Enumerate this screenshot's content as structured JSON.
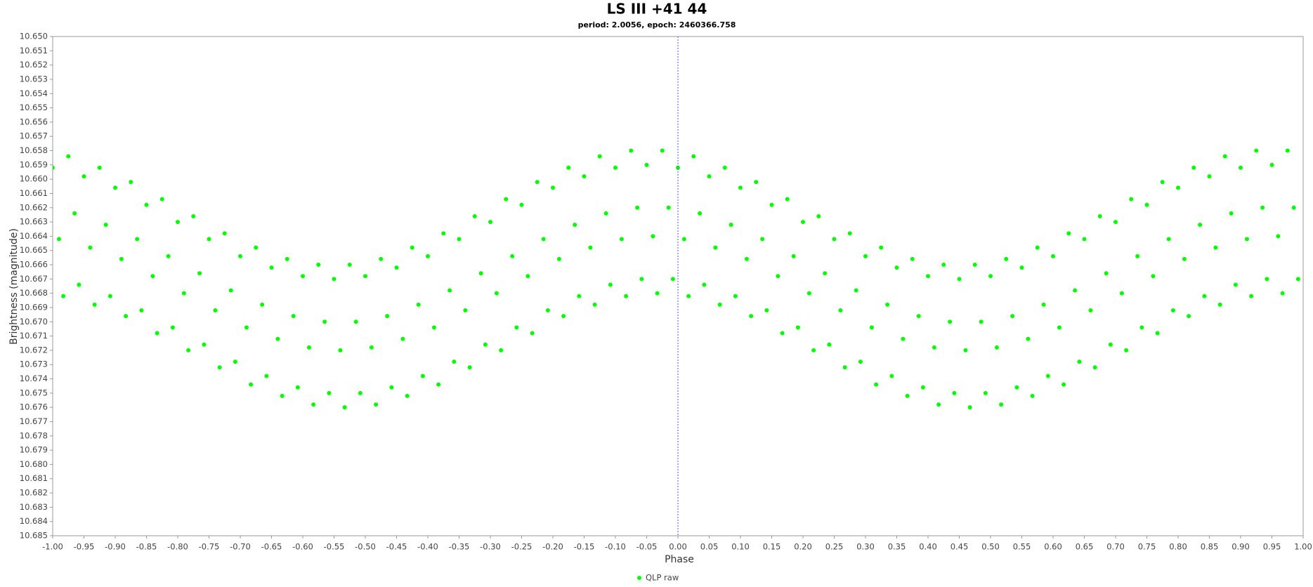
{
  "chart_data": {
    "type": "scatter",
    "title": "LS III +41 44",
    "subtitle": "period: 2.0056, epoch: 2460366.758",
    "x_label": "Phase",
    "y_label": "Brightness (magnitude)",
    "xlim": [
      -1,
      1
    ],
    "ylim": [
      10.65,
      10.685
    ],
    "y_inverted": true,
    "reference_x": 0,
    "legend": "bottom",
    "xticks": [
      {
        "value": -1,
        "label": "-1.00"
      },
      {
        "value": -0.95,
        "label": "-0.95"
      },
      {
        "value": -0.9,
        "label": "-0.90"
      },
      {
        "value": -0.85,
        "label": "-0.85"
      },
      {
        "value": -0.8,
        "label": "-0.80"
      },
      {
        "value": -0.75,
        "label": "-0.75"
      },
      {
        "value": -0.7,
        "label": "-0.70"
      },
      {
        "value": -0.65,
        "label": "-0.65"
      },
      {
        "value": -0.6,
        "label": "-0.60"
      },
      {
        "value": -0.55,
        "label": "-0.55"
      },
      {
        "value": -0.5,
        "label": "-0.50"
      },
      {
        "value": -0.45,
        "label": "-0.45"
      },
      {
        "value": -0.4,
        "label": "-0.40"
      },
      {
        "value": -0.35,
        "label": "-0.35"
      },
      {
        "value": -0.3,
        "label": "-0.30"
      },
      {
        "value": -0.25,
        "label": "-0.25"
      },
      {
        "value": -0.2,
        "label": "-0.20"
      },
      {
        "value": -0.15,
        "label": "-0.15"
      },
      {
        "value": -0.1,
        "label": "-0.10"
      },
      {
        "value": -0.05,
        "label": "-0.05"
      },
      {
        "value": 0,
        "label": "0.00"
      },
      {
        "value": 0.05,
        "label": "0.05"
      },
      {
        "value": 0.1,
        "label": "0.10"
      },
      {
        "value": 0.15,
        "label": "0.15"
      },
      {
        "value": 0.2,
        "label": "0.20"
      },
      {
        "value": 0.25,
        "label": "0.25"
      },
      {
        "value": 0.3,
        "label": "0.30"
      },
      {
        "value": 0.35,
        "label": "0.35"
      },
      {
        "value": 0.4,
        "label": "0.40"
      },
      {
        "value": 0.45,
        "label": "0.45"
      },
      {
        "value": 0.5,
        "label": "0.50"
      },
      {
        "value": 0.55,
        "label": "0.55"
      },
      {
        "value": 0.6,
        "label": "0.60"
      },
      {
        "value": 0.65,
        "label": "0.65"
      },
      {
        "value": 0.7,
        "label": "0.70"
      },
      {
        "value": 0.75,
        "label": "0.75"
      },
      {
        "value": 0.8,
        "label": "0.80"
      },
      {
        "value": 0.85,
        "label": "0.85"
      },
      {
        "value": 0.9,
        "label": "0.90"
      },
      {
        "value": 0.95,
        "label": "0.95"
      },
      {
        "value": 1,
        "label": "1.00"
      }
    ],
    "yticks": [
      {
        "value": 10.65,
        "label": "10.650"
      },
      10.651,
      10.652,
      10.653,
      10.654,
      10.655,
      10.656,
      10.657,
      10.658,
      10.659,
      {
        "value": 10.66,
        "label": "10.660"
      },
      10.661,
      10.662,
      10.663,
      10.664,
      10.665,
      10.666,
      10.667,
      10.668,
      10.669,
      {
        "value": 10.67,
        "label": "10.670"
      },
      10.671,
      10.672,
      10.673,
      10.674,
      10.675,
      10.676,
      10.677,
      10.678,
      10.679,
      {
        "value": 10.68,
        "label": "10.680"
      },
      10.681,
      10.682,
      10.683,
      10.684,
      10.685
    ],
    "series": [
      {
        "name": "QLP raw",
        "color": "#00ff00",
        "x": [
          -1,
          -0.99,
          -0.983,
          -0.975,
          -0.965,
          -0.958,
          -0.95,
          -0.94,
          -0.933,
          -0.925,
          -0.915,
          -0.908,
          -0.9,
          -0.89,
          -0.883,
          -0.875,
          -0.865,
          -0.858,
          -0.85,
          -0.84,
          -0.833,
          -0.825,
          -0.815,
          -0.808,
          -0.8,
          -0.79,
          -0.783,
          -0.775,
          -0.765,
          -0.758,
          -0.75,
          -0.74,
          -0.733,
          -0.725,
          -0.715,
          -0.708,
          -0.7,
          -0.69,
          -0.683,
          -0.675,
          -0.665,
          -0.658,
          -0.65,
          -0.64,
          -0.633,
          -0.625,
          -0.615,
          -0.608,
          -0.6,
          -0.59,
          -0.583,
          -0.575,
          -0.565,
          -0.558,
          -0.55,
          -0.54,
          -0.533,
          -0.525,
          -0.515,
          -0.508,
          -0.5,
          -0.49,
          -0.483,
          -0.475,
          -0.465,
          -0.458,
          -0.45,
          -0.44,
          -0.433,
          -0.425,
          -0.415,
          -0.408,
          -0.4,
          -0.39,
          -0.383,
          -0.375,
          -0.365,
          -0.358,
          -0.35,
          -0.34,
          -0.333,
          -0.325,
          -0.315,
          -0.308,
          -0.3,
          -0.29,
          -0.283,
          -0.275,
          -0.265,
          -0.258,
          -0.25,
          -0.24,
          -0.233,
          -0.225,
          -0.215,
          -0.208,
          -0.2,
          -0.19,
          -0.183,
          -0.175,
          -0.165,
          -0.158,
          -0.15,
          -0.14,
          -0.133,
          -0.125,
          -0.115,
          -0.108,
          -0.1,
          -0.09,
          -0.083,
          -0.075,
          -0.065,
          -0.058,
          -0.05,
          -0.04,
          -0.033,
          -0.025,
          -0.015,
          -0.008,
          0,
          0.01,
          0.017,
          0.025,
          0.035,
          0.042,
          0.05,
          0.06,
          0.067,
          0.075,
          0.085,
          0.092,
          0.1,
          0.11,
          0.117,
          0.125,
          0.135,
          0.142,
          0.15,
          0.16,
          0.167,
          0.175,
          0.185,
          0.192,
          0.2,
          0.21,
          0.217,
          0.225,
          0.235,
          0.242,
          0.25,
          0.26,
          0.267,
          0.275,
          0.285,
          0.292,
          0.3,
          0.31,
          0.317,
          0.325,
          0.335,
          0.342,
          0.35,
          0.36,
          0.367,
          0.375,
          0.385,
          0.392,
          0.4,
          0.41,
          0.417,
          0.425,
          0.435,
          0.442,
          0.45,
          0.46,
          0.467,
          0.475,
          0.485,
          0.492,
          0.5,
          0.51,
          0.517,
          0.525,
          0.535,
          0.542,
          0.55,
          0.56,
          0.567,
          0.575,
          0.585,
          0.592,
          0.6,
          0.61,
          0.617,
          0.625,
          0.635,
          0.642,
          0.65,
          0.66,
          0.667,
          0.675,
          0.685,
          0.692,
          0.7,
          0.71,
          0.717,
          0.725,
          0.735,
          0.742,
          0.75,
          0.76,
          0.767,
          0.775,
          0.785,
          0.792,
          0.8,
          0.81,
          0.817,
          0.825,
          0.835,
          0.842,
          0.85,
          0.86,
          0.867,
          0.875,
          0.885,
          0.892,
          0.9,
          0.91,
          0.917,
          0.925,
          0.935,
          0.942,
          0.95,
          0.96,
          0.967,
          0.975,
          0.985,
          0.992
        ],
        "values": [
          10.6592,
          10.6642,
          10.6682,
          10.6584,
          10.6624,
          10.6674,
          10.6598,
          10.6648,
          10.6688,
          10.6592,
          10.6632,
          10.6682,
          10.6606,
          10.6656,
          10.6696,
          10.6602,
          10.6642,
          10.6692,
          10.6618,
          10.6668,
          10.6708,
          10.6614,
          10.6654,
          10.6704,
          10.663,
          10.668,
          10.672,
          10.6626,
          10.6666,
          10.6716,
          10.6642,
          10.6692,
          10.6732,
          10.6638,
          10.6678,
          10.6728,
          10.6654,
          10.6704,
          10.6744,
          10.6648,
          10.6688,
          10.6738,
          10.6662,
          10.6712,
          10.6752,
          10.6656,
          10.6696,
          10.6746,
          10.6668,
          10.6718,
          10.6758,
          10.666,
          10.67,
          10.675,
          10.667,
          10.672,
          10.676,
          10.666,
          10.67,
          10.675,
          10.6668,
          10.6718,
          10.6758,
          10.6656,
          10.6696,
          10.6746,
          10.6662,
          10.6712,
          10.6752,
          10.6648,
          10.6688,
          10.6738,
          10.6654,
          10.6704,
          10.6744,
          10.6638,
          10.6678,
          10.6728,
          10.6642,
          10.6692,
          10.6732,
          10.6626,
          10.6666,
          10.6716,
          10.663,
          10.668,
          10.672,
          10.6614,
          10.6654,
          10.6704,
          10.6618,
          10.6668,
          10.6708,
          10.6602,
          10.6642,
          10.6692,
          10.6606,
          10.6656,
          10.6696,
          10.6592,
          10.6632,
          10.6682,
          10.6598,
          10.6648,
          10.6688,
          10.6584,
          10.6624,
          10.6674,
          10.6592,
          10.6642,
          10.6682,
          10.658,
          10.662,
          10.667,
          10.659,
          10.664,
          10.668,
          10.658,
          10.662,
          10.667,
          10.6592,
          10.6642,
          10.6682,
          10.6584,
          10.6624,
          10.6674,
          10.6598,
          10.6648,
          10.6688,
          10.6592,
          10.6632,
          10.6682,
          10.6606,
          10.6656,
          10.6696,
          10.6602,
          10.6642,
          10.6692,
          10.6618,
          10.6668,
          10.6708,
          10.6614,
          10.6654,
          10.6704,
          10.663,
          10.668,
          10.672,
          10.6626,
          10.6666,
          10.6716,
          10.6642,
          10.6692,
          10.6732,
          10.6638,
          10.6678,
          10.6728,
          10.6654,
          10.6704,
          10.6744,
          10.6648,
          10.6688,
          10.6738,
          10.6662,
          10.6712,
          10.6752,
          10.6656,
          10.6696,
          10.6746,
          10.6668,
          10.6718,
          10.6758,
          10.666,
          10.67,
          10.675,
          10.667,
          10.672,
          10.676,
          10.666,
          10.67,
          10.675,
          10.6668,
          10.6718,
          10.6758,
          10.6656,
          10.6696,
          10.6746,
          10.6662,
          10.6712,
          10.6752,
          10.6648,
          10.6688,
          10.6738,
          10.6654,
          10.6704,
          10.6744,
          10.6638,
          10.6678,
          10.6728,
          10.6642,
          10.6692,
          10.6732,
          10.6626,
          10.6666,
          10.6716,
          10.663,
          10.668,
          10.672,
          10.6614,
          10.6654,
          10.6704,
          10.6618,
          10.6668,
          10.6708,
          10.6602,
          10.6642,
          10.6692,
          10.6606,
          10.6656,
          10.6696,
          10.6592,
          10.6632,
          10.6682,
          10.6598,
          10.6648,
          10.6688,
          10.6584,
          10.6624,
          10.6674,
          10.6592,
          10.6642,
          10.6682,
          10.658,
          10.662,
          10.667,
          10.659,
          10.664,
          10.668,
          10.658,
          10.662,
          10.667
        ]
      }
    ]
  }
}
